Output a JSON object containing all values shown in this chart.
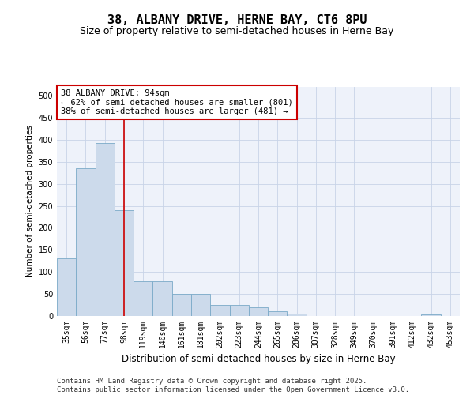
{
  "title": "38, ALBANY DRIVE, HERNE BAY, CT6 8PU",
  "subtitle": "Size of property relative to semi-detached houses in Herne Bay",
  "xlabel": "Distribution of semi-detached houses by size in Herne Bay",
  "ylabel": "Number of semi-detached properties",
  "categories": [
    "35sqm",
    "56sqm",
    "77sqm",
    "98sqm",
    "119sqm",
    "140sqm",
    "161sqm",
    "181sqm",
    "202sqm",
    "223sqm",
    "244sqm",
    "265sqm",
    "286sqm",
    "307sqm",
    "328sqm",
    "349sqm",
    "370sqm",
    "391sqm",
    "412sqm",
    "432sqm",
    "453sqm"
  ],
  "values": [
    131,
    335,
    392,
    241,
    79,
    79,
    51,
    51,
    26,
    26,
    20,
    10,
    5,
    0,
    0,
    0,
    0,
    0,
    0,
    3,
    0
  ],
  "bar_color": "#ccdaeb",
  "bar_edge_color": "#7aaac8",
  "grid_color": "#c8d4e8",
  "background_color": "#ffffff",
  "plot_bg_color": "#eef2fa",
  "marker_bin_index": 3,
  "marker_line_color": "#cc0000",
  "annotation_text": "38 ALBANY DRIVE: 94sqm\n← 62% of semi-detached houses are smaller (801)\n38% of semi-detached houses are larger (481) →",
  "annotation_box_color": "#ffffff",
  "annotation_box_edge_color": "#cc0000",
  "footer_text": "Contains HM Land Registry data © Crown copyright and database right 2025.\nContains public sector information licensed under the Open Government Licence v3.0.",
  "ylim": [
    0,
    520
  ],
  "yticks": [
    0,
    50,
    100,
    150,
    200,
    250,
    300,
    350,
    400,
    450,
    500
  ],
  "title_fontsize": 11,
  "subtitle_fontsize": 9,
  "xlabel_fontsize": 8.5,
  "ylabel_fontsize": 7.5,
  "tick_fontsize": 7,
  "annotation_fontsize": 7.5,
  "footer_fontsize": 6.5
}
